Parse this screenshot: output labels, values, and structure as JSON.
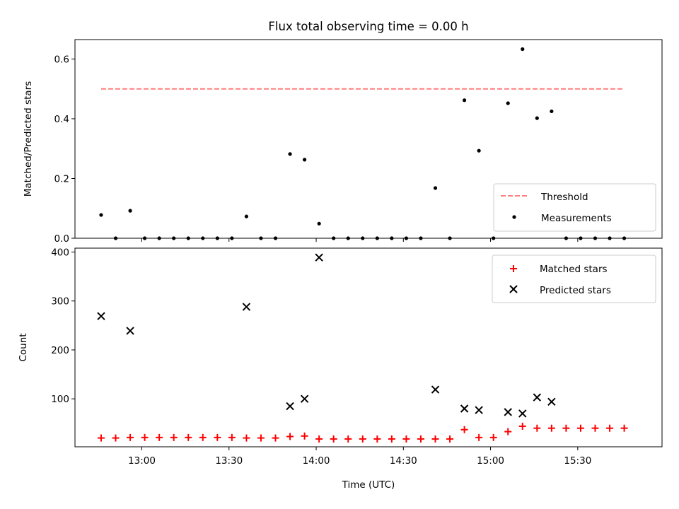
{
  "chart_data": [
    {
      "type": "scatter",
      "title": "Flux total observing time = 0.00 h",
      "xlabel": "",
      "ylabel": "Matched/Predicted stars",
      "xlim": [
        "12:37",
        "15:59"
      ],
      "ylim": [
        0,
        0.665
      ],
      "yticks": [
        0.0,
        0.2,
        0.4,
        0.6
      ],
      "ytick_labels": [
        "0.0",
        "0.2",
        "0.4",
        "0.6"
      ],
      "grid": false,
      "legend": "lower-right",
      "threshold": {
        "name": "Threshold",
        "value": 0.5,
        "x_range": [
          "12:46",
          "15:46"
        ],
        "color": "#ff7f7f",
        "style": "dashed"
      },
      "series": [
        {
          "name": "Measurements",
          "color": "#000000",
          "marker": "dot",
          "x": [
            "12:46",
            "12:51",
            "12:56",
            "13:01",
            "13:06",
            "13:11",
            "13:16",
            "13:21",
            "13:26",
            "13:31",
            "13:36",
            "13:41",
            "13:46",
            "13:51",
            "13:56",
            "14:01",
            "14:06",
            "14:11",
            "14:16",
            "14:21",
            "14:26",
            "14:31",
            "14:36",
            "14:41",
            "14:46",
            "14:51",
            "14:56",
            "15:01",
            "15:06",
            "15:11",
            "15:16",
            "15:21",
            "15:26",
            "15:31",
            "15:36",
            "15:41",
            "15:46"
          ],
          "y": [
            0.078,
            0.0,
            0.092,
            0.0,
            0.0,
            0.0,
            0.0,
            0.0,
            0.0,
            0.0,
            0.073,
            0.0,
            0.0,
            0.282,
            0.263,
            0.049,
            0.0,
            0.0,
            0.0,
            0.0,
            0.0,
            0.0,
            0.0,
            0.168,
            0.0,
            0.462,
            0.293,
            0.0,
            0.452,
            0.633,
            0.402,
            0.425,
            0.0,
            0.0,
            0.0,
            0.0,
            0.0
          ]
        }
      ]
    },
    {
      "type": "scatter",
      "title": "",
      "xlabel": "Time (UTC)",
      "ylabel": "Count",
      "xlim": [
        "12:37",
        "15:59"
      ],
      "ylim": [
        2,
        408
      ],
      "yticks": [
        100,
        200,
        300,
        400
      ],
      "ytick_labels": [
        "100",
        "200",
        "300",
        "400"
      ],
      "xticks": [
        "13:00",
        "13:30",
        "14:00",
        "14:30",
        "15:00",
        "15:30"
      ],
      "xtick_labels": [
        "13:00",
        "13:30",
        "14:00",
        "14:30",
        "15:00",
        "15:30"
      ],
      "grid": false,
      "legend": "upper-right",
      "series": [
        {
          "name": "Matched stars",
          "color": "#ff0000",
          "marker": "plus",
          "x": [
            "12:46",
            "12:51",
            "12:56",
            "13:01",
            "13:06",
            "13:11",
            "13:16",
            "13:21",
            "13:26",
            "13:31",
            "13:36",
            "13:41",
            "13:46",
            "13:51",
            "13:56",
            "14:01",
            "14:06",
            "14:11",
            "14:16",
            "14:21",
            "14:26",
            "14:31",
            "14:36",
            "14:41",
            "14:46",
            "14:51",
            "14:56",
            "15:01",
            "15:06",
            "15:11",
            "15:16",
            "15:21",
            "15:26",
            "15:31",
            "15:36",
            "15:41",
            "15:46"
          ],
          "y": [
            20,
            20,
            21,
            21,
            21,
            21,
            21,
            21,
            21,
            21,
            20,
            20,
            20,
            23,
            24,
            18,
            18,
            18,
            18,
            18,
            18,
            18,
            18,
            18,
            18,
            37,
            21,
            21,
            33,
            44,
            40,
            40,
            40,
            40,
            40,
            40,
            40
          ]
        },
        {
          "name": "Predicted stars",
          "color": "#000000",
          "marker": "x",
          "x": [
            "12:46",
            "12:56",
            "13:36",
            "13:51",
            "13:56",
            "14:01",
            "14:41",
            "14:51",
            "14:56",
            "15:06",
            "15:11",
            "15:16",
            "15:21"
          ],
          "y": [
            269,
            239,
            288,
            85,
            100,
            389,
            119,
            80,
            77,
            73,
            70,
            103,
            94
          ]
        }
      ]
    }
  ]
}
